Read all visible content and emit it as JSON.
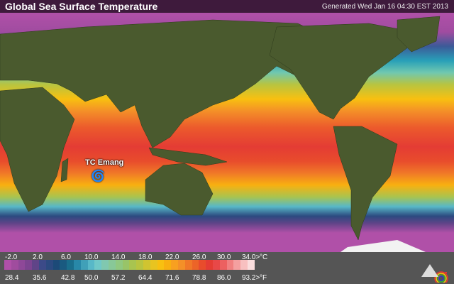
{
  "header": {
    "title": "Global Sea Surface Temperature",
    "generated": "Generated Wed Jan 16 04:30 EST 2013"
  },
  "map": {
    "storm_label": "TC Emang",
    "storm_icon": "tropical-cyclone-icon"
  },
  "legend": {
    "celsius": [
      "-2.0",
      "2.0",
      "6.0",
      "10.0",
      "14.0",
      "18.0",
      "22.0",
      "26.0",
      "30.0",
      "34.0>"
    ],
    "celsius_unit": "°C",
    "fahrenheit": [
      "28.4",
      "35.6",
      "42.8",
      "50.0",
      "57.2",
      "64.4",
      "71.6",
      "78.8",
      "86.0",
      "93.2>"
    ],
    "fahrenheit_unit": "°F",
    "colors": [
      "#b050a8",
      "#a04c9e",
      "#8e4898",
      "#7c4490",
      "#604488",
      "#3c4a88",
      "#2c4a80",
      "#1c4a78",
      "#1a5a80",
      "#1a6e8c",
      "#2888a8",
      "#40a0b8",
      "#58b8c8",
      "#70c8c8",
      "#80c8b0",
      "#88c898",
      "#90c880",
      "#98c468",
      "#a8c450",
      "#b8c440",
      "#d0c430",
      "#e8c420",
      "#f8c010",
      "#f8b010",
      "#f8a020",
      "#f49028",
      "#f07828",
      "#ec6428",
      "#e84c2c",
      "#e43c34",
      "#e84848",
      "#ec6060",
      "#f08080",
      "#f4a0a0",
      "#f8c0c0",
      "#fadede"
    ]
  },
  "logo": {
    "icon": "weather-rainbow-cloud-icon"
  }
}
